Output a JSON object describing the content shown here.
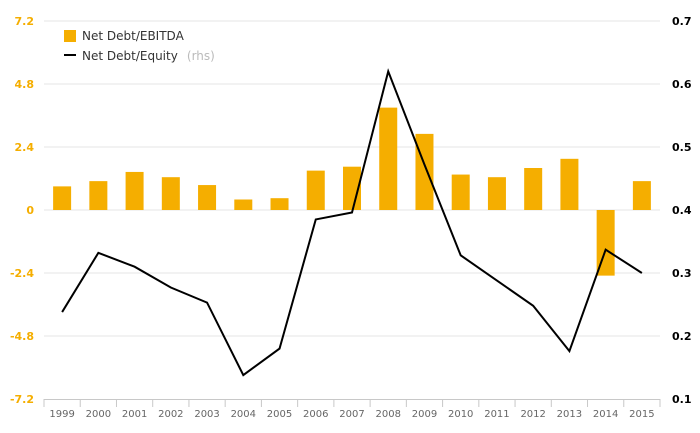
{
  "chart_data": {
    "type": "bar+line",
    "categories": [
      "1999",
      "2000",
      "2001",
      "2002",
      "2003",
      "2004",
      "2005",
      "2006",
      "2007",
      "2008",
      "2009",
      "2010",
      "2011",
      "2012",
      "2013",
      "2014",
      "2015"
    ],
    "series": [
      {
        "name": "Net Debt/EBITDA",
        "type": "bar",
        "axis": "left",
        "color": "#f5ae00",
        "values": [
          0.9,
          1.1,
          1.45,
          1.25,
          0.95,
          0.4,
          0.45,
          1.5,
          1.65,
          3.9,
          2.9,
          1.35,
          1.25,
          1.6,
          1.95,
          -2.5,
          1.1
        ]
      },
      {
        "name": "Net Debt/Equity",
        "type": "line",
        "axis": "right",
        "color": "#000000",
        "values": [
          0.238,
          0.332,
          0.31,
          0.277,
          0.253,
          0.138,
          0.18,
          0.385,
          0.396,
          0.62,
          0.472,
          0.328,
          0.288,
          0.248,
          0.176,
          0.337,
          0.3
        ]
      }
    ],
    "legend_note": "(rhs)",
    "left_axis": {
      "ylim": [
        -7.2,
        7.2
      ],
      "ticks": [
        "7.2",
        "4.8",
        "2.4",
        "0",
        "-2.4",
        "-4.8",
        "-7.2"
      ],
      "tick_values": [
        7.2,
        4.8,
        2.4,
        0,
        -2.4,
        -4.8,
        -7.2
      ],
      "color": "#f5ae00"
    },
    "right_axis": {
      "ylim": [
        0.1,
        0.7
      ],
      "ticks": [
        "0.7",
        "0.6",
        "0.5",
        "0.4",
        "0.3",
        "0.2",
        "0.1"
      ],
      "tick_values": [
        0.7,
        0.6,
        0.5,
        0.4,
        0.3,
        0.2,
        0.1
      ]
    },
    "grid": true,
    "legend_position": "top-left",
    "gridline_color": "#e6e6e6",
    "axis_line_color": "#c8c8c8"
  }
}
